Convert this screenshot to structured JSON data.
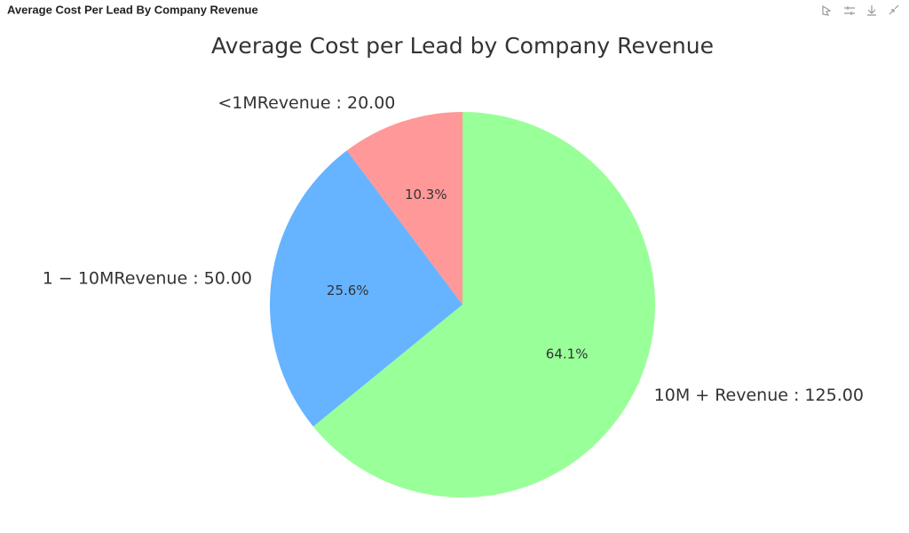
{
  "header": {
    "title": "Average Cost Per Lead By Company Revenue"
  },
  "chart_data": {
    "type": "pie",
    "title": "Average Cost per Lead by Company Revenue",
    "labels": [
      "<1MRevenue : 20.00",
      "1 − 10MRevenue : 50.00",
      "10M + Revenue : 125.00"
    ],
    "values": [
      20,
      50,
      125
    ],
    "percent_labels": [
      "10.3%",
      "25.6%",
      "64.1%"
    ],
    "colors": [
      "#ff9999",
      "#66b3ff",
      "#99ff99"
    ],
    "start_angle": 90,
    "counterclock": true
  }
}
